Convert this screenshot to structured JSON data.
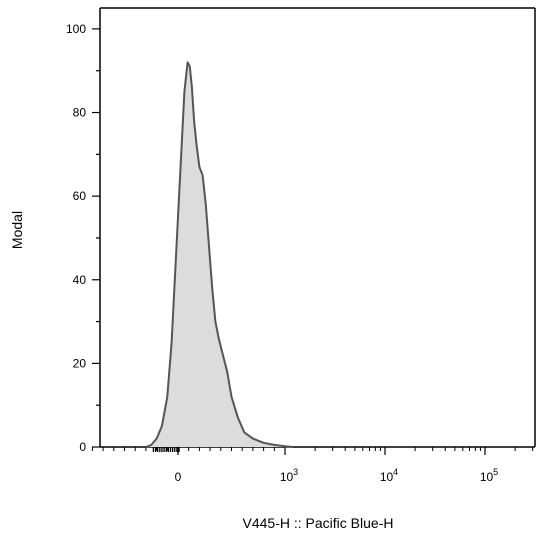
{
  "chart_data": {
    "type": "area",
    "xlabel": "V445-H :: Pacific Blue-H",
    "ylabel": "Modal",
    "x_scale": "biexponential",
    "y_ticks": [
      0,
      20,
      40,
      60,
      80,
      100
    ],
    "ylim": [
      0,
      105
    ],
    "x_ticks": [
      {
        "value": 0,
        "base": "0",
        "exp": ""
      },
      {
        "value": 1000,
        "base": "10",
        "exp": "3"
      },
      {
        "value": 10000,
        "base": "10",
        "exp": "4"
      },
      {
        "value": 100000,
        "base": "10",
        "exp": "5"
      }
    ],
    "grid": false,
    "legend": "none",
    "fill_color": "#dcdcdc",
    "line_color": "#555555",
    "series": [
      {
        "x": [
          -300,
          -250,
          -200,
          -150,
          -100,
          -60,
          -30,
          0,
          30,
          60,
          90,
          110,
          130,
          150,
          175,
          200,
          230,
          260,
          290,
          320,
          350,
          380,
          420,
          460,
          500,
          560,
          620,
          700,
          800,
          900,
          1000,
          1200
        ],
        "values": [
          0,
          0.5,
          2,
          5,
          12,
          25,
          40,
          55,
          70,
          85,
          92,
          91,
          86,
          78,
          72,
          67,
          65,
          58,
          48,
          38,
          30,
          26,
          22,
          18,
          12,
          7,
          3.5,
          2,
          1,
          0.5,
          0.2,
          0
        ]
      }
    ]
  }
}
